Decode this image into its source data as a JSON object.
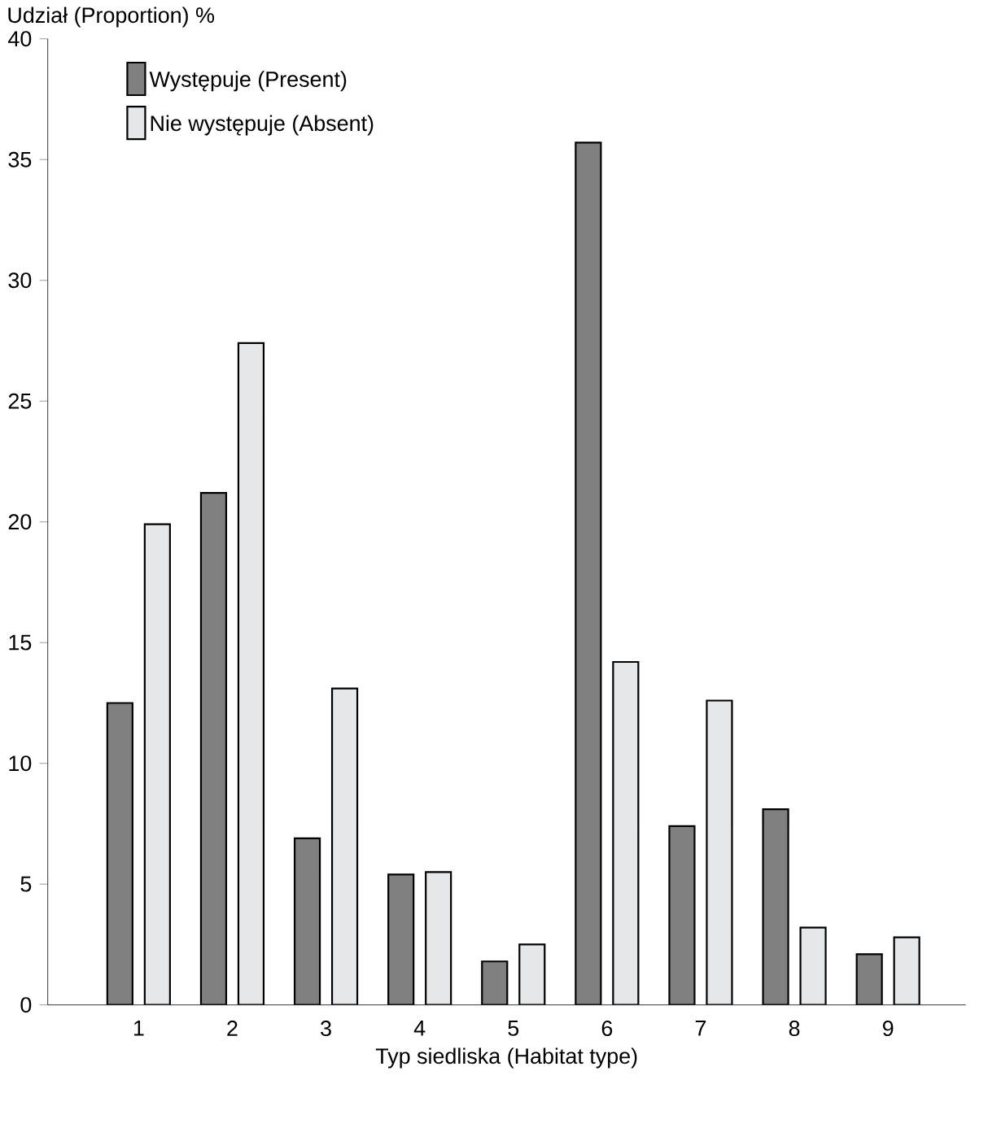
{
  "chart_data": {
    "type": "bar",
    "ylabel": "Udział  (Proportion) %",
    "xlabel": "Typ siedliska (Habitat type)",
    "categories": [
      "1",
      "2",
      "3",
      "4",
      "5",
      "6",
      "7",
      "8",
      "9"
    ],
    "series": [
      {
        "name": "Występuje (Present)",
        "color": "#808080",
        "values": [
          12.5,
          21.2,
          6.9,
          5.4,
          1.8,
          35.7,
          7.4,
          8.1,
          2.1
        ]
      },
      {
        "name": "Nie występuje (Absent)",
        "color": "#e6e7e8",
        "values": [
          19.9,
          27.4,
          13.1,
          5.5,
          2.5,
          14.2,
          12.6,
          3.2,
          2.8
        ]
      }
    ],
    "ylim": [
      0,
      40
    ],
    "yticks": [
      0,
      5,
      10,
      15,
      20,
      25,
      30,
      35,
      40
    ],
    "legend": "top left",
    "grid": false
  }
}
